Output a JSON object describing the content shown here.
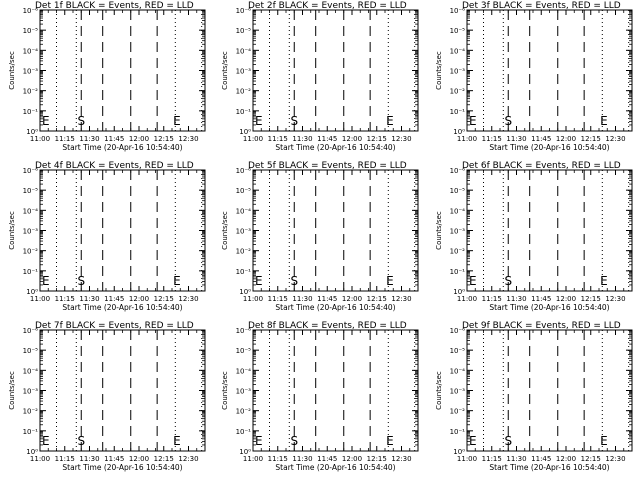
{
  "figure": {
    "background": "#ffffff",
    "ink": "#000000"
  },
  "chart_data": [
    {
      "type": "line",
      "title": "Det 1f BLACK = Events, RED = LLD",
      "xlabel": "Start Time (20-Apr-16 10:54:40)",
      "ylabel": "Counts/sec",
      "xticks": [
        "11:00",
        "11:15",
        "11:30",
        "11:45",
        "12:00",
        "12:15",
        "12:30"
      ],
      "xlim_minutes": [
        0,
        100
      ],
      "yscale": "log",
      "yticks": [
        "10⁰",
        "10⁻¹",
        "10⁻²",
        "10⁻³",
        "10⁻⁴",
        "10⁻⁵",
        "10⁻⁶"
      ],
      "markers": [
        {
          "label": "E",
          "x": 0
        },
        {
          "label": "S",
          "x": 25
        },
        {
          "label": "E",
          "x": 83
        }
      ],
      "dotted_x": [
        10,
        22,
        82,
        98
      ],
      "dashed_x": [
        25,
        38,
        55,
        71
      ],
      "series": []
    },
    {
      "type": "line",
      "title": "Det 2f BLACK = Events, RED = LLD",
      "xlabel": "Start Time (20-Apr-16 10:54:40)",
      "ylabel": "Counts/sec",
      "xticks": [
        "11:00",
        "11:15",
        "11:30",
        "11:45",
        "12:00",
        "12:15",
        "12:30"
      ],
      "xlim_minutes": [
        0,
        100
      ],
      "yscale": "log",
      "yticks": [
        "10⁰",
        "10⁻¹",
        "10⁻²",
        "10⁻³",
        "10⁻⁴",
        "10⁻⁵",
        "10⁻⁶"
      ],
      "markers": [
        {
          "label": "E",
          "x": 0
        },
        {
          "label": "S",
          "x": 25
        },
        {
          "label": "E",
          "x": 83
        }
      ],
      "dotted_x": [
        10,
        22,
        82,
        98
      ],
      "dashed_x": [
        25,
        38,
        55,
        71
      ],
      "series": []
    },
    {
      "type": "line",
      "title": "Det 3f BLACK = Events, RED = LLD",
      "xlabel": "Start Time (20-Apr-16 10:54:40)",
      "ylabel": "Counts/sec",
      "xticks": [
        "11:00",
        "11:15",
        "11:30",
        "11:45",
        "12:00",
        "12:15",
        "12:30"
      ],
      "xlim_minutes": [
        0,
        100
      ],
      "yscale": "log",
      "yticks": [
        "10⁰",
        "10⁻¹",
        "10⁻²",
        "10⁻³",
        "10⁻⁴",
        "10⁻⁵",
        "10⁻⁶"
      ],
      "markers": [
        {
          "label": "E",
          "x": 0
        },
        {
          "label": "S",
          "x": 25
        },
        {
          "label": "E",
          "x": 83
        }
      ],
      "dotted_x": [
        10,
        22,
        82,
        98
      ],
      "dashed_x": [
        25,
        38,
        55,
        71
      ],
      "series": []
    },
    {
      "type": "line",
      "title": "Det 4f BLACK = Events, RED = LLD",
      "xlabel": "Start Time (20-Apr-16 10:54:40)",
      "ylabel": "Counts/sec",
      "xticks": [
        "11:00",
        "11:15",
        "11:30",
        "11:45",
        "12:00",
        "12:15",
        "12:30"
      ],
      "xlim_minutes": [
        0,
        100
      ],
      "yscale": "log",
      "yticks": [
        "10⁰",
        "10⁻¹",
        "10⁻²",
        "10⁻³",
        "10⁻⁴",
        "10⁻⁵",
        "10⁻⁶"
      ],
      "markers": [
        {
          "label": "E",
          "x": 0
        },
        {
          "label": "S",
          "x": 25
        },
        {
          "label": "E",
          "x": 83
        }
      ],
      "dotted_x": [
        10,
        22,
        82,
        98
      ],
      "dashed_x": [
        25,
        38,
        55,
        71
      ],
      "series": []
    },
    {
      "type": "line",
      "title": "Det 5f BLACK = Events, RED = LLD",
      "xlabel": "Start Time (20-Apr-16 10:54:40)",
      "ylabel": "Counts/sec",
      "xticks": [
        "11:00",
        "11:15",
        "11:30",
        "11:45",
        "12:00",
        "12:15",
        "12:30"
      ],
      "xlim_minutes": [
        0,
        100
      ],
      "yscale": "log",
      "yticks": [
        "10⁰",
        "10⁻¹",
        "10⁻²",
        "10⁻³",
        "10⁻⁴",
        "10⁻⁵",
        "10⁻⁶"
      ],
      "markers": [
        {
          "label": "E",
          "x": 0
        },
        {
          "label": "S",
          "x": 25
        },
        {
          "label": "E",
          "x": 83
        }
      ],
      "dotted_x": [
        10,
        22,
        82,
        98
      ],
      "dashed_x": [
        25,
        38,
        55,
        71
      ],
      "series": []
    },
    {
      "type": "line",
      "title": "Det 6f BLACK = Events, RED = LLD",
      "xlabel": "Start Time (20-Apr-16 10:54:40)",
      "ylabel": "Counts/sec",
      "xticks": [
        "11:00",
        "11:15",
        "11:30",
        "11:45",
        "12:00",
        "12:15",
        "12:30"
      ],
      "xlim_minutes": [
        0,
        100
      ],
      "yscale": "log",
      "yticks": [
        "10⁰",
        "10⁻¹",
        "10⁻²",
        "10⁻³",
        "10⁻⁴",
        "10⁻⁵",
        "10⁻⁶"
      ],
      "markers": [
        {
          "label": "E",
          "x": 0
        },
        {
          "label": "S",
          "x": 25
        },
        {
          "label": "E",
          "x": 83
        }
      ],
      "dotted_x": [
        10,
        22,
        82,
        98
      ],
      "dashed_x": [
        25,
        38,
        55,
        71
      ],
      "series": []
    },
    {
      "type": "line",
      "title": "Det 7f BLACK = Events, RED = LLD",
      "xlabel": "Start Time (20-Apr-16 10:54:40)",
      "ylabel": "Counts/sec",
      "xticks": [
        "11:00",
        "11:15",
        "11:30",
        "11:45",
        "12:00",
        "12:15",
        "12:30"
      ],
      "xlim_minutes": [
        0,
        100
      ],
      "yscale": "log",
      "yticks": [
        "10⁰",
        "10⁻¹",
        "10⁻²",
        "10⁻³",
        "10⁻⁴",
        "10⁻⁵",
        "10⁻⁶"
      ],
      "markers": [
        {
          "label": "E",
          "x": 0
        },
        {
          "label": "S",
          "x": 25
        },
        {
          "label": "E",
          "x": 83
        }
      ],
      "dotted_x": [
        10,
        22,
        82,
        98
      ],
      "dashed_x": [
        25,
        38,
        55,
        71
      ],
      "series": []
    },
    {
      "type": "line",
      "title": "Det 8f BLACK = Events, RED = LLD",
      "xlabel": "Start Time (20-Apr-16 10:54:40)",
      "ylabel": "Counts/sec",
      "xticks": [
        "11:00",
        "11:15",
        "11:30",
        "11:45",
        "12:00",
        "12:15",
        "12:30"
      ],
      "xlim_minutes": [
        0,
        100
      ],
      "yscale": "log",
      "yticks": [
        "10⁰",
        "10⁻¹",
        "10⁻²",
        "10⁻³",
        "10⁻⁴",
        "10⁻⁵",
        "10⁻⁶"
      ],
      "markers": [
        {
          "label": "E",
          "x": 0
        },
        {
          "label": "S",
          "x": 25
        },
        {
          "label": "E",
          "x": 83
        }
      ],
      "dotted_x": [
        10,
        22,
        82,
        98
      ],
      "dashed_x": [
        25,
        38,
        55,
        71
      ],
      "series": []
    },
    {
      "type": "line",
      "title": "Det 9f BLACK = Events, RED = LLD",
      "xlabel": "Start Time (20-Apr-16 10:54:40)",
      "ylabel": "Counts/sec",
      "xticks": [
        "11:00",
        "11:15",
        "11:30",
        "11:45",
        "12:00",
        "12:15",
        "12:30"
      ],
      "xlim_minutes": [
        0,
        100
      ],
      "yscale": "log",
      "yticks": [
        "10⁰",
        "10⁻¹",
        "10⁻²",
        "10⁻³",
        "10⁻⁴",
        "10⁻⁵",
        "10⁻⁶"
      ],
      "markers": [
        {
          "label": "E",
          "x": 0
        },
        {
          "label": "S",
          "x": 25
        },
        {
          "label": "E",
          "x": 83
        }
      ],
      "dotted_x": [
        10,
        22,
        82,
        98
      ],
      "dashed_x": [
        25,
        38,
        55,
        71
      ],
      "series": []
    }
  ]
}
